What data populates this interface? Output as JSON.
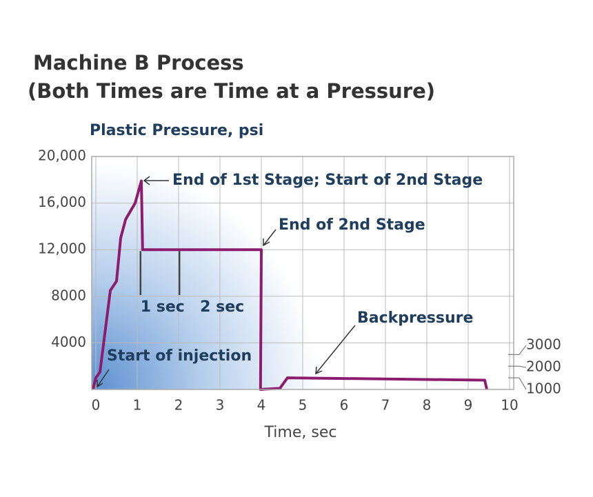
{
  "chart_data": {
    "type": "line",
    "title": "Machine B Process",
    "subtitle": "(Both Times are Time at a Pressure)",
    "y_label": "Plastic Pressure, psi",
    "x_label": "Time, sec",
    "x": [
      -0.07,
      0,
      0.1,
      0.35,
      0.5,
      0.6,
      0.72,
      0.95,
      1.1,
      1.13,
      4.0,
      3.98,
      4.45,
      4.63,
      9.4,
      9.45
    ],
    "values": [
      0,
      1000,
      1500,
      8500,
      9300,
      13000,
      14600,
      16000,
      17900,
      12000,
      12000,
      0,
      100,
      1000,
      800,
      0
    ],
    "color": "#8c1d6e",
    "xlim": [
      -0.1,
      10.1
    ],
    "xticks": [
      0,
      1,
      2,
      3,
      4,
      5,
      6,
      7,
      8,
      9,
      10
    ],
    "ylim": [
      0,
      20000
    ],
    "yticks": [
      {
        "value": 4000,
        "label": "4000"
      },
      {
        "value": 8000,
        "label": "8000"
      },
      {
        "value": 12000,
        "label": "12,000"
      },
      {
        "value": 16000,
        "label": "16,000"
      },
      {
        "value": 20000,
        "label": "20,000"
      }
    ],
    "y2lim": [
      0,
      20000
    ],
    "y2ticks": [
      1000,
      2000,
      3000
    ],
    "grid": true,
    "time_markers": [
      {
        "label": "1 sec",
        "x": 1.08
      },
      {
        "label": "2 sec",
        "x": 2.02
      }
    ],
    "annotations": [
      "End of 1st Stage; Start of 2nd Stage",
      "End of 2nd Stage",
      "Backpressure",
      "Start of injection"
    ]
  }
}
